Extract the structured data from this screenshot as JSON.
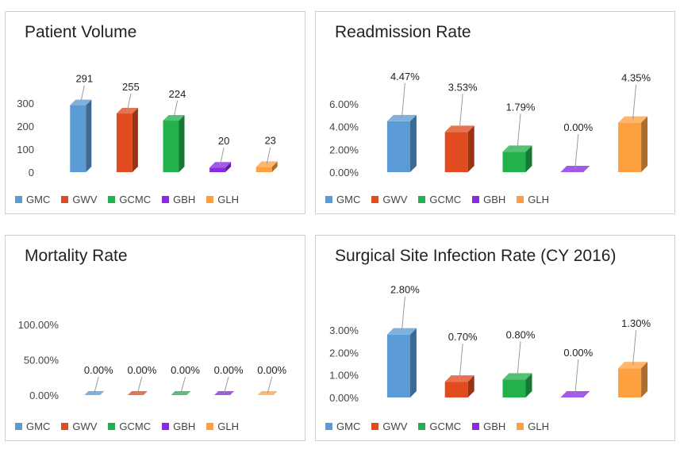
{
  "legend": {
    "items": [
      {
        "label": "GMC",
        "color": "#5b9bd5"
      },
      {
        "label": "GWV",
        "color": "#e04b1f"
      },
      {
        "label": "GCMC",
        "color": "#22b14c"
      },
      {
        "label": "GBH",
        "color": "#8a2be2"
      },
      {
        "label": "GLH",
        "color": "#ffa040"
      }
    ]
  },
  "chart_data": [
    {
      "type": "bar",
      "title": "Patient Volume",
      "categories": [
        "GMC",
        "GWV",
        "GCMC",
        "GBH",
        "GLH"
      ],
      "values": [
        291,
        255,
        224,
        20,
        23
      ],
      "value_labels": [
        "291",
        "255",
        "224",
        "20",
        "23"
      ],
      "ylim": [
        0,
        300
      ],
      "ytick_values": [
        0,
        100,
        200,
        300
      ],
      "ytick_labels": [
        "0",
        "100",
        "200",
        "300"
      ],
      "xlabel": "",
      "ylabel": "",
      "legend": "bottom"
    },
    {
      "type": "bar",
      "title": "Readmission Rate",
      "categories": [
        "GMC",
        "GWV",
        "GCMC",
        "GBH",
        "GLH"
      ],
      "values": [
        4.47,
        3.53,
        1.79,
        0.0,
        4.35
      ],
      "value_labels": [
        "4.47%",
        "3.53%",
        "1.79%",
        "0.00%",
        "4.35%"
      ],
      "ylim": [
        0,
        6
      ],
      "ytick_values": [
        0,
        2,
        4,
        6
      ],
      "ytick_labels": [
        "0.00%",
        "2.00%",
        "4.00%",
        "6.00%"
      ],
      "xlabel": "",
      "ylabel": "",
      "legend": "bottom"
    },
    {
      "type": "bar",
      "title": "Mortality Rate",
      "categories": [
        "GMC",
        "GWV",
        "GCMC",
        "GBH",
        "GLH"
      ],
      "values": [
        0.0,
        0.0,
        0.0,
        0.0,
        0.0
      ],
      "value_labels": [
        "0.00%",
        "0.00%",
        "0.00%",
        "0.00%",
        "0.00%"
      ],
      "ylim": [
        0,
        100
      ],
      "ytick_values": [
        0,
        50,
        100
      ],
      "ytick_labels": [
        "0.00%",
        "50.00%",
        "100.00%"
      ],
      "xlabel": "",
      "ylabel": "",
      "legend": "bottom"
    },
    {
      "type": "bar",
      "title": "Surgical Site Infection Rate (CY 2016)",
      "categories": [
        "GMC",
        "GWV",
        "GCMC",
        "GBH",
        "GLH"
      ],
      "values": [
        2.8,
        0.7,
        0.8,
        0.0,
        1.3
      ],
      "value_labels": [
        "2.80%",
        "0.70%",
        "0.80%",
        "0.00%",
        "1.30%"
      ],
      "ylim": [
        0,
        3
      ],
      "ytick_values": [
        0,
        1,
        2,
        3
      ],
      "ytick_labels": [
        "0.00%",
        "1.00%",
        "2.00%",
        "3.00%"
      ],
      "xlabel": "",
      "ylabel": "",
      "legend": "bottom"
    }
  ]
}
